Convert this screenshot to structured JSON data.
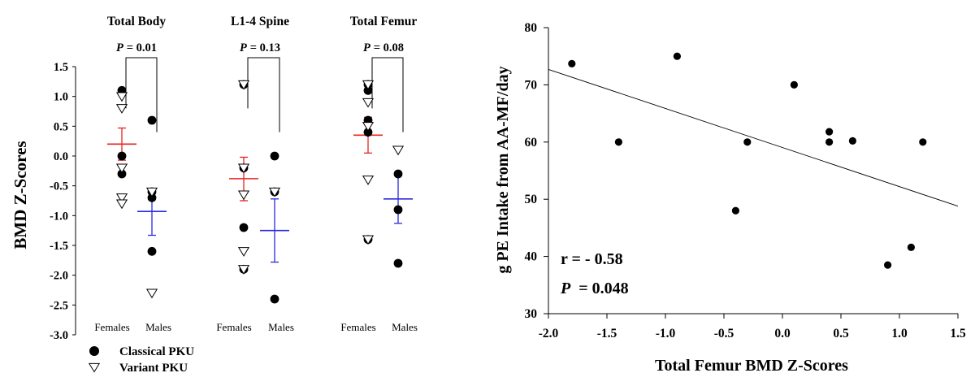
{
  "chart_data": [
    {
      "type": "scatter",
      "subtype": "grouped dot plot with mean ± SE",
      "ylabel": "BMD Z-Scores",
      "ylim": [
        -3.0,
        1.5
      ],
      "yticks": [
        "1.5",
        "1.0",
        "0.5",
        "0.0",
        "-0.5",
        "-1.0",
        "-1.5",
        "-2.0",
        "-2.5",
        "-3.0"
      ],
      "group_labels": [
        "Females",
        "Males"
      ],
      "legend": {
        "position": "bottom-left",
        "entries": [
          {
            "name": "Classical PKU",
            "marker": "filled-circle"
          },
          {
            "name": "Variant PKU",
            "marker": "open-triangle-down"
          }
        ]
      },
      "colors": {
        "females_mean": "#e8231f",
        "males_mean": "#2a2ae0"
      },
      "panels": [
        {
          "title": "Total Body",
          "p_label": "P",
          "p_value": "= 0.01",
          "females": {
            "classical": [
              1.1,
              0.0,
              -0.3
            ],
            "variant": [
              1.0,
              0.8,
              -0.2,
              -0.7,
              -0.8
            ],
            "mean": 0.2,
            "se_low": -0.07,
            "se_high": 0.47
          },
          "males": {
            "classical": [
              0.6,
              -0.6,
              -0.7,
              -1.6
            ],
            "variant": [
              -0.6,
              -2.3
            ],
            "mean": -0.93,
            "se_low": -1.33,
            "se_high": -0.55
          }
        },
        {
          "title": "L1-4 Spine",
          "p_label": "P",
          "p_value": "= 0.13",
          "females": {
            "classical": [
              1.2,
              -0.2,
              -1.2,
              -1.9
            ],
            "variant": [
              1.2,
              -0.2,
              -0.65,
              -1.6,
              -1.9
            ],
            "mean": -0.38,
            "se_low": -0.75,
            "se_high": -0.02
          },
          "males": {
            "classical": [
              0.0,
              -0.6,
              -2.4
            ],
            "variant": [
              -0.6
            ],
            "mean": -1.25,
            "se_low": -1.78,
            "se_high": -0.72
          }
        },
        {
          "title": "Total Femur",
          "p_label": "P",
          "p_value": "= 0.08",
          "females": {
            "classical": [
              1.2,
              1.1,
              0.6,
              0.4,
              -1.4
            ],
            "variant": [
              1.2,
              0.9,
              0.5,
              -0.4,
              -1.4
            ],
            "mean": 0.35,
            "se_low": 0.05,
            "se_high": 0.65
          },
          "males": {
            "classical": [
              -0.3,
              -0.9,
              -1.8
            ],
            "variant": [
              0.1
            ],
            "mean": -0.72,
            "se_low": -1.13,
            "se_high": -0.33
          }
        }
      ]
    },
    {
      "type": "scatter",
      "xlabel": "Total Femur BMD Z-Scores",
      "ylabel": "g PE Intake from AA-MF/day",
      "xlim": [
        -2.0,
        1.5
      ],
      "ylim": [
        30,
        80
      ],
      "xticks": [
        "-2.0",
        "-1.5",
        "-1.0",
        "-0.5",
        "0.0",
        "0.5",
        "1.0",
        "1.5"
      ],
      "yticks": [
        "30",
        "40",
        "50",
        "60",
        "70",
        "80"
      ],
      "points": [
        {
          "x": -1.8,
          "y": 73.7
        },
        {
          "x": -1.4,
          "y": 60.0
        },
        {
          "x": -0.9,
          "y": 75.0
        },
        {
          "x": -0.4,
          "y": 48.0
        },
        {
          "x": -0.3,
          "y": 60.0
        },
        {
          "x": 0.1,
          "y": 70.0
        },
        {
          "x": 0.4,
          "y": 61.8
        },
        {
          "x": 0.4,
          "y": 60.0
        },
        {
          "x": 0.6,
          "y": 60.2
        },
        {
          "x": 0.9,
          "y": 38.5
        },
        {
          "x": 1.1,
          "y": 41.6
        },
        {
          "x": 1.2,
          "y": 60.0
        }
      ],
      "regression": {
        "x0": -2.0,
        "y0": 72.7,
        "x1": 1.5,
        "y1": 48.8
      },
      "annotations": {
        "r_text": "r = - 0.58",
        "p_label": "P",
        "p_value": "= 0.048"
      }
    }
  ]
}
